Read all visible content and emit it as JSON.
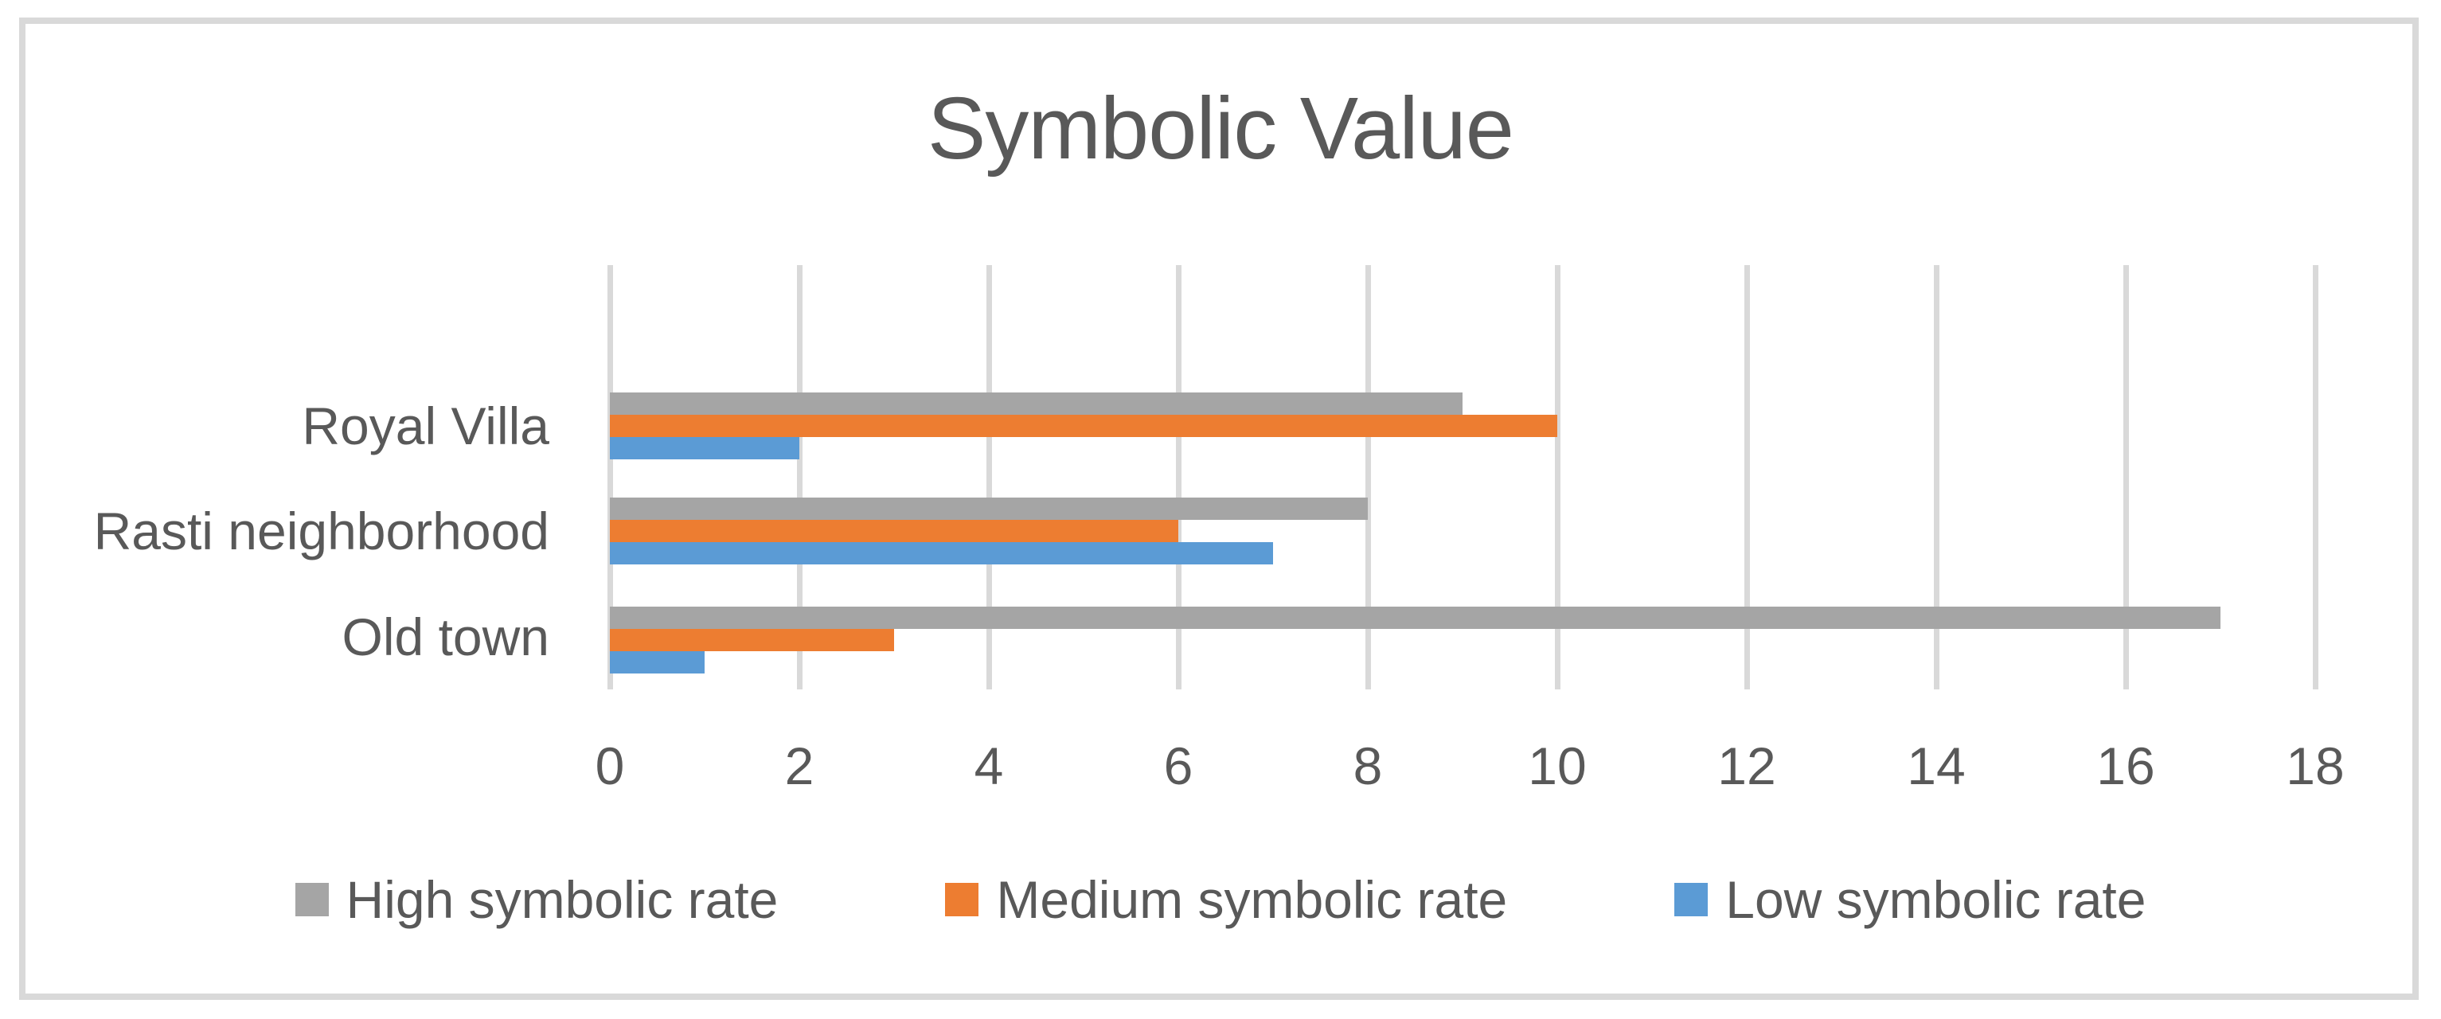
{
  "title": "Symbolic Value",
  "colors": {
    "text": "#595959",
    "gridline": "#d9d9d9",
    "frame_border": "#d9d9d9",
    "background": "#ffffff"
  },
  "chart_data": {
    "type": "bar",
    "orientation": "horizontal",
    "title": "Symbolic Value",
    "categories": [
      "Royal Villa",
      "Rasti neighborhood",
      "Old town"
    ],
    "series": [
      {
        "name": "High symbolic rate",
        "color": "#a5a5a5",
        "values": [
          9,
          8,
          17
        ]
      },
      {
        "name": "Medium symbolic rate",
        "color": "#ed7d31",
        "values": [
          10,
          6,
          3
        ]
      },
      {
        "name": "Low symbolic rate",
        "color": "#5b9bd5",
        "values": [
          2,
          7,
          1
        ]
      }
    ],
    "xlabel": "",
    "ylabel": "",
    "xlim": [
      0,
      18
    ],
    "xticks": [
      0,
      2,
      4,
      6,
      8,
      10,
      12,
      14,
      16,
      18
    ],
    "grid": "vertical",
    "legend_position": "bottom"
  }
}
